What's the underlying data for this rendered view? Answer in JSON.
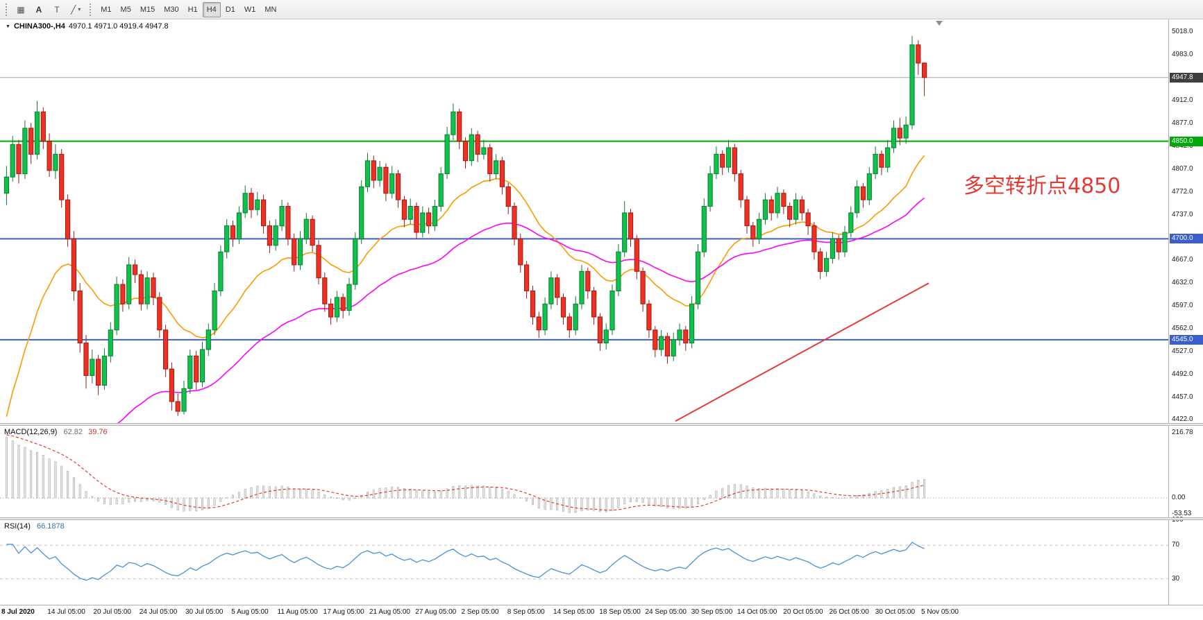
{
  "toolbar": {
    "tools": {
      "grid_glyph": "▦",
      "a_label": "A",
      "t_label": "T",
      "shapes_glyph": "╱",
      "dropdown_glyph": "▾"
    },
    "timeframes": [
      {
        "label": "M1",
        "active": false
      },
      {
        "label": "M5",
        "active": false
      },
      {
        "label": "M15",
        "active": false
      },
      {
        "label": "M30",
        "active": false
      },
      {
        "label": "H1",
        "active": false
      },
      {
        "label": "H4",
        "active": true
      },
      {
        "label": "D1",
        "active": false
      },
      {
        "label": "W1",
        "active": false
      },
      {
        "label": "MN",
        "active": false
      }
    ]
  },
  "chart": {
    "symbol_header": {
      "dropdown_glyph": "▼",
      "symbol": "CHINA300-,H4",
      "ohlc": "4970.1 4971.0 4919.4 4947.8"
    }
  },
  "chart_data": {
    "type": "candlestick",
    "title": "CHINA300-,H4",
    "timeframe": "H4",
    "last_ohlc": {
      "open": 4970.1,
      "high": 4971.0,
      "low": 4919.4,
      "close": 4947.8
    },
    "price_axis": {
      "min": 4417,
      "max": 5035,
      "ticks": [
        "5018.0",
        "4983.0",
        "4912.0",
        "4877.0",
        "4842.0",
        "4807.0",
        "4772.0",
        "4737.0",
        "4667.0",
        "4632.0",
        "4597.0",
        "4562.0",
        "4527.0",
        "4492.0",
        "4457.0",
        "4422.0"
      ]
    },
    "time_labels": [
      "8 Jul 2020",
      "14 Jul 05:00",
      "20 Jul 05:00",
      "24 Jul 05:00",
      "30 Jul 05:00",
      "5 Aug 05:00",
      "11 Aug 05:00",
      "17 Aug 05:00",
      "21 Aug 05:00",
      "27 Aug 05:00",
      "2 Sep 05:00",
      "8 Sep 05:00",
      "14 Sep 05:00",
      "18 Sep 05:00",
      "24 Sep 05:00",
      "30 Sep 05:00",
      "14 Oct 05:00",
      "20 Oct 05:00",
      "26 Oct 05:00",
      "30 Oct 05:00",
      "5 Nov 05:00"
    ],
    "levels": [
      {
        "price": 4947.8,
        "label": "4947.8",
        "line_color": "#a6a6a6",
        "line_width": 1,
        "tag_bg": "#3f3f3f"
      },
      {
        "price": 4850.0,
        "label": "4850.0",
        "line_color": "#00a80a",
        "line_width": 2,
        "tag_bg": "#00a80a"
      },
      {
        "price": 4700.0,
        "label": "4700.0",
        "line_color": "#3a5fcd",
        "line_width": 2,
        "tag_bg": "#3a5fcd"
      },
      {
        "price": 4545.0,
        "label": "4545.0",
        "line_color": "#3a5fcd",
        "line_width": 2,
        "tag_bg": "#3a5fcd"
      }
    ],
    "trendline": {
      "x1_frac": 0.578,
      "p1": 4420,
      "x2_frac": 0.795,
      "p2": 4632,
      "color": "#e53935"
    },
    "annotation": {
      "text": "多空转折点4850",
      "color": "#e53935",
      "x_frac": 0.825,
      "price": 4790,
      "font_size": 30
    },
    "colors": {
      "bull": "#10c24a",
      "bull_border": "#0a7d30",
      "bear": "#ef3124",
      "bear_border": "#a01810",
      "ma_fast": "#ff9900",
      "ma_slow": "#ff00ff"
    },
    "candles": [
      [
        4770,
        4812,
        4752,
        4795
      ],
      [
        4795,
        4858,
        4788,
        4845
      ],
      [
        4845,
        4852,
        4785,
        4800
      ],
      [
        4800,
        4882,
        4792,
        4870
      ],
      [
        4870,
        4878,
        4815,
        4830
      ],
      [
        4830,
        4912,
        4822,
        4895
      ],
      [
        4895,
        4902,
        4838,
        4850
      ],
      [
        4850,
        4862,
        4795,
        4805
      ],
      [
        4805,
        4845,
        4792,
        4830
      ],
      [
        4830,
        4838,
        4748,
        4760
      ],
      [
        4760,
        4768,
        4688,
        4700
      ],
      [
        4700,
        4712,
        4605,
        4620
      ],
      [
        4620,
        4632,
        4525,
        4540
      ],
      [
        4540,
        4552,
        4470,
        4490
      ],
      [
        4490,
        4530,
        4478,
        4515
      ],
      [
        4515,
        4522,
        4460,
        4475
      ],
      [
        4475,
        4532,
        4468,
        4520
      ],
      [
        4520,
        4572,
        4510,
        4560
      ],
      [
        4560,
        4642,
        4552,
        4630
      ],
      [
        4630,
        4638,
        4588,
        4600
      ],
      [
        4600,
        4672,
        4592,
        4660
      ],
      [
        4660,
        4668,
        4632,
        4645
      ],
      [
        4645,
        4652,
        4590,
        4600
      ],
      [
        4600,
        4650,
        4592,
        4640
      ],
      [
        4640,
        4648,
        4598,
        4610
      ],
      [
        4610,
        4618,
        4548,
        4560
      ],
      [
        4560,
        4568,
        4488,
        4500
      ],
      [
        4500,
        4510,
        4436,
        4450
      ],
      [
        4450,
        4462,
        4428,
        4435
      ],
      [
        4435,
        4482,
        4430,
        4470
      ],
      [
        4470,
        4530,
        4462,
        4520
      ],
      [
        4520,
        4528,
        4468,
        4480
      ],
      [
        4480,
        4542,
        4472,
        4530
      ],
      [
        4530,
        4570,
        4520,
        4560
      ],
      [
        4560,
        4632,
        4552,
        4620
      ],
      [
        4620,
        4690,
        4612,
        4680
      ],
      [
        4680,
        4730,
        4670,
        4720
      ],
      [
        4720,
        4728,
        4688,
        4700
      ],
      [
        4700,
        4750,
        4692,
        4740
      ],
      [
        4740,
        4782,
        4732,
        4770
      ],
      [
        4770,
        4778,
        4732,
        4745
      ],
      [
        4745,
        4772,
        4736,
        4760
      ],
      [
        4760,
        4768,
        4708,
        4720
      ],
      [
        4720,
        4728,
        4678,
        4690
      ],
      [
        4690,
        4730,
        4682,
        4720
      ],
      [
        4720,
        4760,
        4712,
        4750
      ],
      [
        4750,
        4756,
        4690,
        4700
      ],
      [
        4700,
        4708,
        4650,
        4660
      ],
      [
        4660,
        4712,
        4652,
        4700
      ],
      [
        4700,
        4740,
        4692,
        4730
      ],
      [
        4730,
        4736,
        4680,
        4690
      ],
      [
        4690,
        4698,
        4630,
        4640
      ],
      [
        4640,
        4648,
        4588,
        4600
      ],
      [
        4600,
        4608,
        4568,
        4580
      ],
      [
        4580,
        4620,
        4572,
        4610
      ],
      [
        4610,
        4616,
        4578,
        4590
      ],
      [
        4590,
        4640,
        4582,
        4630
      ],
      [
        4630,
        4710,
        4622,
        4700
      ],
      [
        4700,
        4790,
        4692,
        4780
      ],
      [
        4780,
        4832,
        4772,
        4820
      ],
      [
        4820,
        4828,
        4778,
        4790
      ],
      [
        4790,
        4820,
        4780,
        4810
      ],
      [
        4810,
        4816,
        4758,
        4770
      ],
      [
        4770,
        4812,
        4762,
        4800
      ],
      [
        4800,
        4806,
        4748,
        4760
      ],
      [
        4760,
        4766,
        4718,
        4730
      ],
      [
        4730,
        4762,
        4722,
        4750
      ],
      [
        4750,
        4756,
        4700,
        4710
      ],
      [
        4710,
        4750,
        4702,
        4740
      ],
      [
        4740,
        4748,
        4708,
        4720
      ],
      [
        4720,
        4760,
        4712,
        4750
      ],
      [
        4750,
        4810,
        4742,
        4800
      ],
      [
        4800,
        4872,
        4792,
        4860
      ],
      [
        4860,
        4908,
        4852,
        4895
      ],
      [
        4895,
        4900,
        4838,
        4850
      ],
      [
        4850,
        4856,
        4808,
        4820
      ],
      [
        4820,
        4870,
        4812,
        4860
      ],
      [
        4860,
        4866,
        4818,
        4830
      ],
      [
        4830,
        4852,
        4822,
        4840
      ],
      [
        4840,
        4846,
        4788,
        4800
      ],
      [
        4800,
        4830,
        4792,
        4820
      ],
      [
        4820,
        4826,
        4768,
        4780
      ],
      [
        4780,
        4786,
        4738,
        4750
      ],
      [
        4750,
        4756,
        4690,
        4700
      ],
      [
        4700,
        4708,
        4648,
        4660
      ],
      [
        4660,
        4666,
        4608,
        4620
      ],
      [
        4620,
        4628,
        4568,
        4580
      ],
      [
        4580,
        4588,
        4548,
        4560
      ],
      [
        4560,
        4610,
        4552,
        4600
      ],
      [
        4600,
        4650,
        4592,
        4640
      ],
      [
        4640,
        4646,
        4598,
        4610
      ],
      [
        4610,
        4616,
        4568,
        4580
      ],
      [
        4580,
        4586,
        4548,
        4560
      ],
      [
        4560,
        4612,
        4552,
        4600
      ],
      [
        4600,
        4660,
        4592,
        4650
      ],
      [
        4650,
        4656,
        4608,
        4620
      ],
      [
        4620,
        4626,
        4568,
        4580
      ],
      [
        4580,
        4586,
        4528,
        4540
      ],
      [
        4540,
        4570,
        4530,
        4560
      ],
      [
        4560,
        4630,
        4552,
        4620
      ],
      [
        4620,
        4692,
        4612,
        4680
      ],
      [
        4680,
        4758,
        4672,
        4740
      ],
      [
        4740,
        4746,
        4688,
        4700
      ],
      [
        4700,
        4706,
        4638,
        4650
      ],
      [
        4650,
        4656,
        4588,
        4600
      ],
      [
        4600,
        4606,
        4548,
        4560
      ],
      [
        4560,
        4566,
        4518,
        4530
      ],
      [
        4530,
        4560,
        4520,
        4550
      ],
      [
        4550,
        4556,
        4508,
        4520
      ],
      [
        4520,
        4556,
        4512,
        4545
      ],
      [
        4545,
        4570,
        4536,
        4560
      ],
      [
        4560,
        4566,
        4528,
        4540
      ],
      [
        4540,
        4612,
        4532,
        4600
      ],
      [
        4600,
        4692,
        4592,
        4680
      ],
      [
        4680,
        4762,
        4672,
        4750
      ],
      [
        4750,
        4812,
        4742,
        4800
      ],
      [
        4800,
        4842,
        4792,
        4830
      ],
      [
        4830,
        4836,
        4798,
        4810
      ],
      [
        4810,
        4852,
        4802,
        4840
      ],
      [
        4840,
        4846,
        4788,
        4800
      ],
      [
        4800,
        4806,
        4748,
        4760
      ],
      [
        4760,
        4766,
        4708,
        4720
      ],
      [
        4720,
        4726,
        4688,
        4700
      ],
      [
        4700,
        4740,
        4692,
        4730
      ],
      [
        4730,
        4770,
        4722,
        4760
      ],
      [
        4760,
        4766,
        4728,
        4740
      ],
      [
        4740,
        4780,
        4732,
        4770
      ],
      [
        4770,
        4776,
        4738,
        4750
      ],
      [
        4750,
        4756,
        4718,
        4730
      ],
      [
        4730,
        4770,
        4722,
        4760
      ],
      [
        4760,
        4766,
        4728,
        4740
      ],
      [
        4740,
        4746,
        4706,
        4720
      ],
      [
        4720,
        4726,
        4668,
        4680
      ],
      [
        4680,
        4686,
        4638,
        4650
      ],
      [
        4650,
        4680,
        4642,
        4670
      ],
      [
        4670,
        4710,
        4662,
        4700
      ],
      [
        4700,
        4706,
        4668,
        4680
      ],
      [
        4680,
        4720,
        4672,
        4710
      ],
      [
        4710,
        4750,
        4702,
        4740
      ],
      [
        4740,
        4790,
        4732,
        4780
      ],
      [
        4780,
        4786,
        4748,
        4760
      ],
      [
        4760,
        4810,
        4752,
        4800
      ],
      [
        4800,
        4842,
        4792,
        4830
      ],
      [
        4830,
        4836,
        4798,
        4810
      ],
      [
        4810,
        4852,
        4802,
        4840
      ],
      [
        4840,
        4882,
        4832,
        4870
      ],
      [
        4870,
        4886,
        4844,
        4855
      ],
      [
        4855,
        4888,
        4846,
        4875
      ],
      [
        4875,
        5012,
        4868,
        4998
      ],
      [
        4998,
        5005,
        4952,
        4970
      ],
      [
        4970.1,
        4971,
        4919.4,
        4947.8
      ]
    ],
    "macd": {
      "label": "MACD(12,26,9)",
      "value_main": "62.82",
      "value_signal": "39.76",
      "params": [
        12,
        26,
        9
      ],
      "axis": [
        {
          "label": "216.78",
          "value": 216.78
        },
        {
          "label": "0.00",
          "value": 0
        },
        {
          "label": "-53.53",
          "value": -53.53
        }
      ],
      "hist_color": "#e6e6e6",
      "hist_border": "#a8a8a8",
      "signal_color": "#e53935"
    },
    "rsi": {
      "label": "RSI(14)",
      "value": "66.1878",
      "period": 14,
      "levels": [
        {
          "label": "100",
          "value": 100
        },
        {
          "label": "70",
          "value": 70
        },
        {
          "label": "30",
          "value": 30
        }
      ],
      "level_line_values": [
        70,
        30
      ],
      "line_color": "#4a90d9"
    }
  }
}
